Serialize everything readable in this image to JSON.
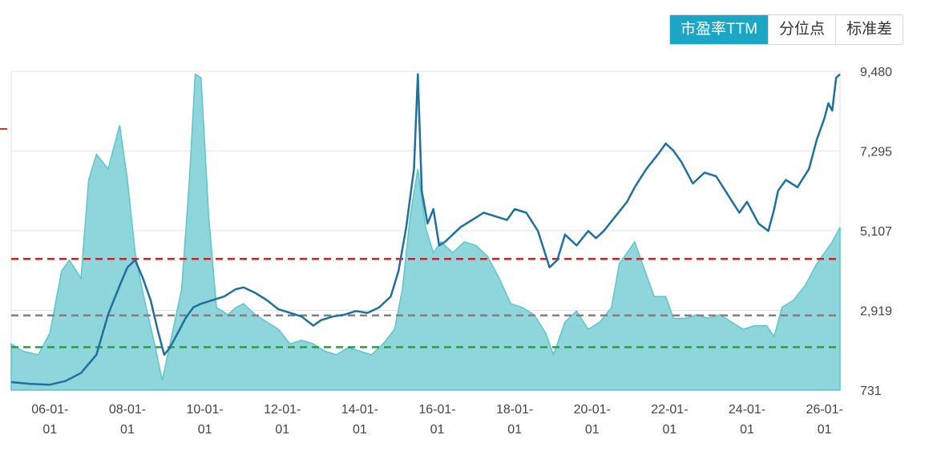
{
  "tabs": [
    "市盈率TTM",
    "分位点",
    "标准差"
  ],
  "active_tab": 0,
  "colors": {
    "line": "#1f6f9f",
    "area_fill": "#8fd6dc",
    "area_stroke": "#5fc4cc",
    "danger_line": "#c0262b",
    "median_line": "#808080",
    "opportunity_line": "#2a9d4a",
    "tab_active": "#1aa6c4"
  },
  "chart_data": {
    "type": "line",
    "y_ticks": [
      "9,480",
      "7,295",
      "5,107",
      "2,919",
      "731"
    ],
    "ylim": [
      731,
      9480
    ],
    "x_ticks": [
      {
        "top": "06-01-",
        "bottom": "01"
      },
      {
        "top": "08-01-",
        "bottom": "01"
      },
      {
        "top": "10-01-",
        "bottom": "01"
      },
      {
        "top": "12-01-",
        "bottom": "01"
      },
      {
        "top": "14-01-",
        "bottom": "01"
      },
      {
        "top": "16-01-",
        "bottom": "01"
      },
      {
        "top": "18-01-",
        "bottom": "01"
      },
      {
        "top": "20-01-",
        "bottom": "01"
      },
      {
        "top": "22-01-",
        "bottom": "01"
      },
      {
        "top": "24-01-",
        "bottom": "01"
      },
      {
        "top": "26-01-",
        "bottom": "01"
      }
    ],
    "x_range": [
      2005.0,
      2026.4
    ],
    "reference_lines": [
      {
        "role": "danger",
        "value": 4330
      },
      {
        "role": "median",
        "value": 2780
      },
      {
        "role": "opportunity",
        "value": 1910
      }
    ],
    "series": [
      {
        "role": "index",
        "x": [
          2005.0,
          2005.5,
          2006.0,
          2006.4,
          2006.8,
          2007.2,
          2007.5,
          2007.8,
          2008.0,
          2008.2,
          2008.4,
          2008.6,
          2008.8,
          2008.95,
          2009.1,
          2009.3,
          2009.5,
          2009.7,
          2009.9,
          2010.2,
          2010.5,
          2010.8,
          2011.0,
          2011.3,
          2011.6,
          2011.9,
          2012.2,
          2012.5,
          2012.8,
          2013.0,
          2013.3,
          2013.6,
          2013.9,
          2014.2,
          2014.5,
          2014.8,
          2015.0,
          2015.2,
          2015.4,
          2015.5,
          2015.6,
          2015.75,
          2015.9,
          2016.05,
          2016.2,
          2016.4,
          2016.6,
          2016.9,
          2017.2,
          2017.5,
          2017.8,
          2018.0,
          2018.3,
          2018.6,
          2018.9,
          2019.1,
          2019.3,
          2019.6,
          2019.9,
          2020.1,
          2020.3,
          2020.6,
          2020.9,
          2021.1,
          2021.4,
          2021.7,
          2021.9,
          2022.1,
          2022.3,
          2022.6,
          2022.9,
          2023.2,
          2023.5,
          2023.8,
          2024.0,
          2024.3,
          2024.55,
          2024.7,
          2024.8,
          2025.0,
          2025.3,
          2025.6,
          2025.8,
          2026.0,
          2026.1,
          2026.2,
          2026.3,
          2026.4
        ],
        "values": [
          950,
          900,
          880,
          980,
          1200,
          1700,
          2800,
          3600,
          4100,
          4300,
          3800,
          3200,
          2300,
          1700,
          1900,
          2300,
          2700,
          3000,
          3100,
          3200,
          3300,
          3500,
          3550,
          3400,
          3200,
          2950,
          2850,
          2750,
          2500,
          2650,
          2750,
          2800,
          2900,
          2850,
          3000,
          3300,
          4000,
          5200,
          6800,
          9400,
          6200,
          5300,
          5700,
          4700,
          4800,
          5000,
          5200,
          5400,
          5600,
          5500,
          5400,
          5700,
          5600,
          5100,
          4100,
          4300,
          5000,
          4700,
          5100,
          4900,
          5100,
          5500,
          5900,
          6300,
          6800,
          7200,
          7500,
          7300,
          7000,
          6400,
          6700,
          6600,
          6100,
          5600,
          5900,
          5300,
          5100,
          5700,
          6200,
          6500,
          6300,
          6800,
          7600,
          8200,
          8600,
          8400,
          9300,
          9400
        ]
      },
      {
        "role": "pe_ttm",
        "x": [
          2005.0,
          2005.3,
          2005.7,
          2006.0,
          2006.3,
          2006.5,
          2006.8,
          2007.0,
          2007.2,
          2007.5,
          2007.8,
          2008.0,
          2008.2,
          2008.4,
          2008.7,
          2008.9,
          2009.1,
          2009.4,
          2009.6,
          2009.75,
          2009.9,
          2010.1,
          2010.3,
          2010.6,
          2010.8,
          2011.0,
          2011.3,
          2011.6,
          2011.9,
          2012.2,
          2012.5,
          2012.8,
          2013.1,
          2013.4,
          2013.7,
          2014.0,
          2014.3,
          2014.6,
          2014.9,
          2015.1,
          2015.3,
          2015.5,
          2015.7,
          2015.9,
          2016.1,
          2016.4,
          2016.7,
          2017.0,
          2017.3,
          2017.6,
          2017.9,
          2018.2,
          2018.5,
          2018.8,
          2019.0,
          2019.3,
          2019.6,
          2019.9,
          2020.2,
          2020.5,
          2020.7,
          2020.9,
          2021.1,
          2021.3,
          2021.6,
          2021.9,
          2022.1,
          2022.4,
          2022.7,
          2023.0,
          2023.3,
          2023.6,
          2023.9,
          2024.2,
          2024.5,
          2024.7,
          2024.9,
          2025.2,
          2025.5,
          2025.8,
          2026.0,
          2026.2,
          2026.4
        ],
        "values": [
          2000,
          1800,
          1700,
          2300,
          4000,
          4300,
          3800,
          6500,
          7200,
          6800,
          8000,
          6500,
          4500,
          3400,
          2000,
          1000,
          2000,
          3500,
          6500,
          9400,
          9300,
          5500,
          3000,
          2800,
          3000,
          3100,
          2800,
          2600,
          2400,
          2000,
          2100,
          2000,
          1800,
          1700,
          1900,
          1800,
          1700,
          2000,
          2400,
          3500,
          5500,
          6800,
          5200,
          4500,
          4800,
          4500,
          4800,
          4700,
          4400,
          3800,
          3100,
          3000,
          2800,
          2300,
          1700,
          2600,
          2900,
          2400,
          2600,
          3000,
          4200,
          4500,
          4800,
          4200,
          3300,
          3300,
          2700,
          2700,
          2800,
          2700,
          2800,
          2600,
          2400,
          2500,
          2500,
          2200,
          3000,
          3200,
          3600,
          4200,
          4500,
          4800,
          5200
        ]
      }
    ]
  }
}
